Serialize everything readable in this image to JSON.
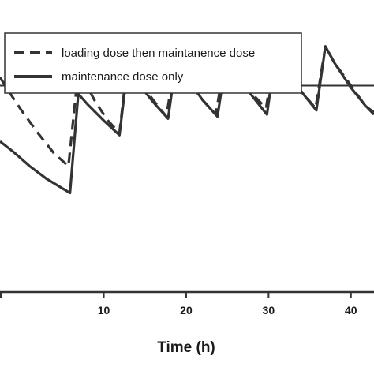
{
  "chart_data": {
    "type": "line",
    "title": "",
    "xlabel": "Time (h)",
    "ylabel": "",
    "xlim": [
      -2.6,
      42.8
    ],
    "ylim": [
      0,
      1.3
    ],
    "x_ticks": [
      10,
      20,
      30,
      40
    ],
    "x_tick_labels": [
      "10",
      "20",
      "30",
      "40"
    ],
    "legend_position": "top",
    "grid": false,
    "reference_line": {
      "y": 1.0
    },
    "series": [
      {
        "name": "loading dose then maintanence dose",
        "style": "dashed",
        "color": "#333333",
        "points": [
          [
            -2.6,
            1.04
          ],
          [
            -1.5,
            0.97
          ],
          [
            0,
            0.88
          ],
          [
            2,
            0.77
          ],
          [
            4,
            0.67
          ],
          [
            5.7,
            0.61
          ],
          [
            6.9,
            1.07
          ],
          [
            7.5,
            1.03
          ],
          [
            9,
            0.92
          ],
          [
            10.5,
            0.83
          ],
          [
            11.9,
            0.77
          ],
          [
            12.9,
            1.12
          ],
          [
            14,
            1.04
          ],
          [
            16,
            0.93
          ],
          [
            17.6,
            0.85
          ],
          [
            18.7,
            1.13
          ],
          [
            20,
            1.04
          ],
          [
            22,
            0.93
          ],
          [
            23.6,
            0.86
          ],
          [
            24.8,
            1.15
          ],
          [
            26,
            1.07
          ],
          [
            28,
            0.96
          ],
          [
            29.7,
            0.89
          ],
          [
            30.8,
            1.17
          ],
          [
            32,
            1.08
          ],
          [
            34,
            0.97
          ],
          [
            35.7,
            0.89
          ],
          [
            36.9,
            1.19
          ],
          [
            38,
            1.11
          ],
          [
            40,
            1.0
          ],
          [
            41.6,
            0.91
          ],
          [
            42.8,
            0.86
          ]
        ]
      },
      {
        "name": "maintenance dose only",
        "style": "solid",
        "color": "#333333",
        "points": [
          [
            -2.6,
            0.73
          ],
          [
            -1,
            0.68
          ],
          [
            1,
            0.61
          ],
          [
            3,
            0.55
          ],
          [
            5.9,
            0.48
          ],
          [
            6.9,
            0.96
          ],
          [
            8,
            0.91
          ],
          [
            10,
            0.83
          ],
          [
            11.9,
            0.76
          ],
          [
            12.9,
            1.09
          ],
          [
            14,
            1.02
          ],
          [
            16,
            0.92
          ],
          [
            17.8,
            0.84
          ],
          [
            18.8,
            1.12
          ],
          [
            20,
            1.04
          ],
          [
            22,
            0.93
          ],
          [
            23.8,
            0.85
          ],
          [
            24.9,
            1.14
          ],
          [
            26,
            1.06
          ],
          [
            28,
            0.95
          ],
          [
            29.8,
            0.86
          ],
          [
            30.9,
            1.17
          ],
          [
            32,
            1.08
          ],
          [
            34,
            0.97
          ],
          [
            35.8,
            0.88
          ],
          [
            36.9,
            1.19
          ],
          [
            38,
            1.11
          ],
          [
            40,
            0.99
          ],
          [
            41.8,
            0.9
          ],
          [
            42.8,
            0.87
          ]
        ]
      }
    ]
  }
}
